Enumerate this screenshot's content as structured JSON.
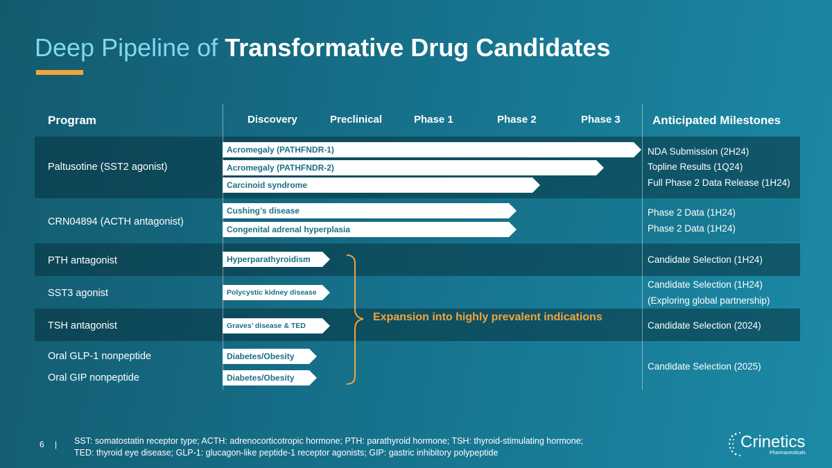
{
  "title": {
    "light": "Deep Pipeline of",
    "bold": "Transformative Drug Candidates"
  },
  "headers": {
    "program": "Program",
    "discovery": "Discovery",
    "preclinical": "Preclinical",
    "phase1": "Phase 1",
    "phase2": "Phase 2",
    "phase3": "Phase 3",
    "milestones": "Anticipated Milestones"
  },
  "rows": {
    "paltusotine": {
      "program": "Paltusotine (SST2 agonist)",
      "bars": [
        "Acromegaly (PATHFNDR-1)",
        "Acromegaly (PATHFNDR-2)",
        "Carcinoid syndrome"
      ],
      "milestones": [
        "NDA Submission (2H24)",
        "Topline Results (1Q24)",
        "Full Phase 2 Data Release (1H24)"
      ]
    },
    "crn04894": {
      "program": "CRN04894 (ACTH antagonist)",
      "bars": [
        "Cushing’s disease",
        "Congenital adrenal hyperplasia"
      ],
      "milestones": [
        "Phase 2 Data (1H24)",
        "Phase 2 Data (1H24)"
      ]
    },
    "pth": {
      "program": "PTH antagonist",
      "bars": [
        "Hyperparathyroidism"
      ],
      "milestones": [
        "Candidate Selection (1H24)"
      ]
    },
    "sst3": {
      "program": "SST3 agonist",
      "bars": [
        "Polycystic kidney disease"
      ],
      "milestones": [
        "Candidate Selection (1H24)",
        "(Exploring global partnership)"
      ]
    },
    "tsh": {
      "program": "TSH antagonist",
      "bars": [
        "Graves’ disease & TED"
      ],
      "milestones": [
        "Candidate Selection (2024)"
      ]
    },
    "glp1": {
      "program": "Oral GLP-1 nonpeptide",
      "bars": [
        "Diabetes/Obesity"
      ]
    },
    "gip": {
      "program": "Oral GIP nonpeptide",
      "bars": [
        "Diabetes/Obesity"
      ],
      "milestones": [
        "Candidate Selection (2025)"
      ]
    }
  },
  "expansion": "Expansion into highly prevalent indications",
  "footer": {
    "page": "6",
    "separator": "|",
    "footnote_line1": "SST: somatostatin receptor type; ACTH: adrenocorticotropic hormone; PTH: parathyroid hormone;  TSH: thyroid-stimulating hormone;",
    "footnote_line2": "TED: thyroid eye disease; GLP-1: glucagon-like peptide-1 receptor agonists; GIP: gastric inhibitory polypeptide"
  },
  "logo": {
    "name": "Crinetics",
    "sub": "Pharmaceuticals"
  },
  "colors": {
    "accent": "#f3a43b",
    "title_light": "#7fd9ee",
    "bar_text": "#1b6f86"
  }
}
